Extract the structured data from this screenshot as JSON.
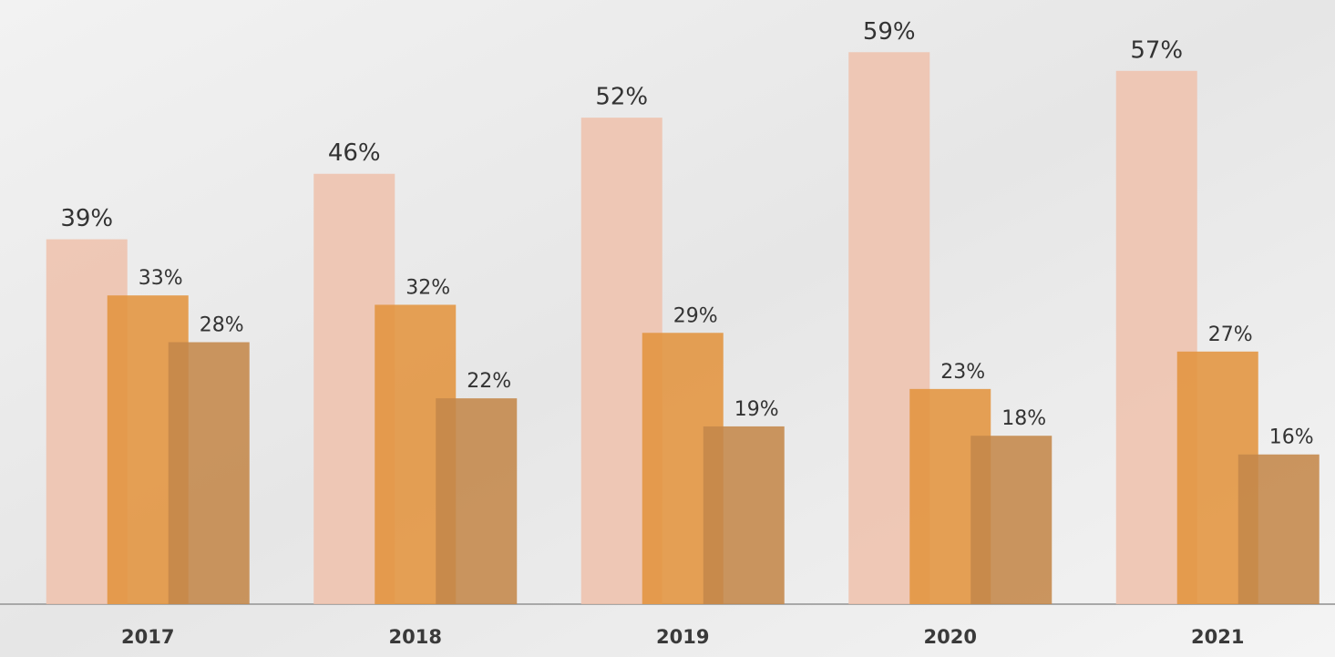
{
  "chart_data": {
    "type": "bar",
    "categories": [
      "2017",
      "2018",
      "2019",
      "2020",
      "2021"
    ],
    "series": [
      {
        "color": "#efc1ac",
        "values": [
          39,
          46,
          52,
          59,
          57
        ],
        "value_labels": [
          "39%",
          "46%",
          "52%",
          "59%",
          "57%"
        ]
      },
      {
        "color": "#e3943f",
        "values": [
          33,
          32,
          29,
          23,
          27
        ],
        "value_labels": [
          "33%",
          "32%",
          "29%",
          "23%",
          "27%"
        ]
      },
      {
        "color": "#c4884a",
        "values": [
          28,
          22,
          19,
          18,
          16
        ],
        "value_labels": [
          "28%",
          "22%",
          "19%",
          "18%",
          "16%"
        ]
      }
    ],
    "ylim": [
      0,
      60
    ]
  }
}
